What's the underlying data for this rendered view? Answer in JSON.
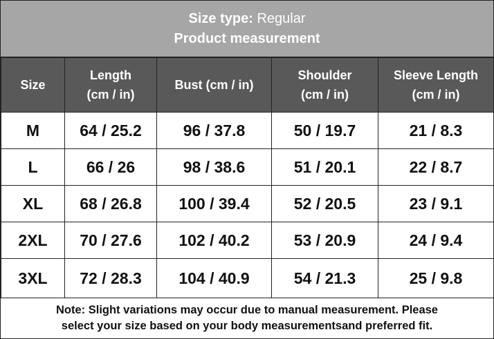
{
  "header": {
    "label": "Size type:",
    "value": "Regular",
    "subtitle": "Product measurement"
  },
  "table": {
    "columns": [
      [
        "Size"
      ],
      [
        "Length",
        "(cm / in)"
      ],
      [
        "Bust (cm / in)"
      ],
      [
        "Shoulder",
        "(cm / in)"
      ],
      [
        "Sleeve Length",
        "(cm / in)"
      ]
    ],
    "rows": [
      [
        "M",
        "64 / 25.2",
        "96 / 37.8",
        "50 / 19.7",
        "21 / 8.3"
      ],
      [
        "L",
        "66 / 26",
        "98 / 38.6",
        "51 / 20.1",
        "22 / 8.7"
      ],
      [
        "XL",
        "68 / 26.8",
        "100 / 39.4",
        "52 / 20.5",
        "23 / 9.1"
      ],
      [
        "2XL",
        "70 / 27.6",
        "102 / 40.2",
        "53 / 20.9",
        "24 / 9.4"
      ],
      [
        "3XL",
        "72 / 28.3",
        "104 / 40.9",
        "54 / 21.3",
        "25 / 9.8"
      ]
    ]
  },
  "note": [
    "Note: Slight variations may occur due to manual measurement. Please",
    "select your size based on your body measurementsand preferred fit."
  ]
}
